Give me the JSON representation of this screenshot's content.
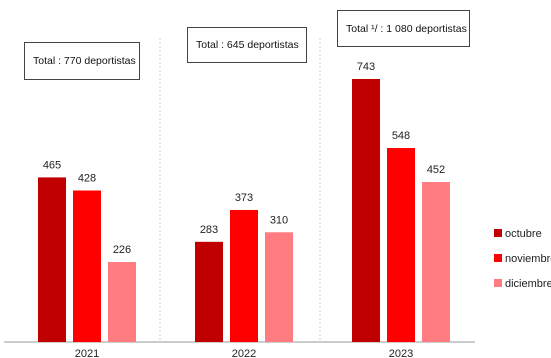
{
  "chart_data": {
    "type": "bar",
    "categories": [
      "2021",
      "2022",
      "2023"
    ],
    "series": [
      {
        "name": "octubre",
        "values": [
          465,
          283,
          743
        ],
        "color": "#C00000"
      },
      {
        "name": "noviembre",
        "values": [
          428,
          373,
          548
        ],
        "color": "#FF0000"
      },
      {
        "name": "diciembre",
        "values": [
          226,
          310,
          452
        ],
        "color": "#FF7C80"
      }
    ],
    "totals": [
      "Total : 770 deportistas",
      "Total : 645 deportistas",
      "Total ¹/ :  1 080 deportistas"
    ],
    "ylim": [
      0,
      800
    ],
    "grid": false,
    "legend_position": "right"
  }
}
